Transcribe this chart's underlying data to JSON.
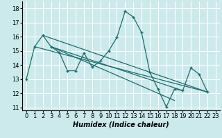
{
  "xlabel": "Humidex (Indice chaleur)",
  "bg_color": "#cce9ec",
  "grid_color": "#ffffff",
  "line_color": "#1a6e6a",
  "xlim": [
    -0.5,
    23.5
  ],
  "ylim": [
    10.8,
    18.5
  ],
  "yticks": [
    11,
    12,
    13,
    14,
    15,
    16,
    17,
    18
  ],
  "xticks": [
    0,
    1,
    2,
    3,
    4,
    5,
    6,
    7,
    8,
    9,
    10,
    11,
    12,
    13,
    14,
    15,
    16,
    17,
    18,
    19,
    20,
    21,
    22,
    23
  ],
  "main_series_x": [
    0,
    1,
    2,
    3,
    4,
    5,
    6,
    7,
    8,
    9,
    10,
    11,
    12,
    13,
    14,
    15,
    16,
    17,
    18,
    19,
    20,
    21,
    22
  ],
  "main_series_y": [
    13.0,
    15.3,
    16.1,
    15.3,
    14.9,
    13.6,
    13.6,
    14.85,
    13.85,
    14.3,
    15.0,
    15.95,
    17.8,
    17.4,
    16.3,
    13.5,
    12.3,
    11.05,
    12.3,
    12.2,
    13.8,
    13.35,
    12.1
  ],
  "trend_lines": [
    {
      "x_start": 1,
      "y_start": 15.3,
      "x_end": 22,
      "y_end": 12.1
    },
    {
      "x_start": 2,
      "y_start": 16.1,
      "x_end": 22,
      "y_end": 12.1
    },
    {
      "x_start": 3,
      "y_start": 15.3,
      "x_end": 19,
      "y_end": 12.2
    },
    {
      "x_start": 3,
      "y_start": 15.3,
      "x_end": 18,
      "y_end": 11.5
    }
  ],
  "marker": "+",
  "markersize": 3,
  "linewidth": 0.9,
  "xlabel_fontsize": 7,
  "tick_fontsize": 6
}
